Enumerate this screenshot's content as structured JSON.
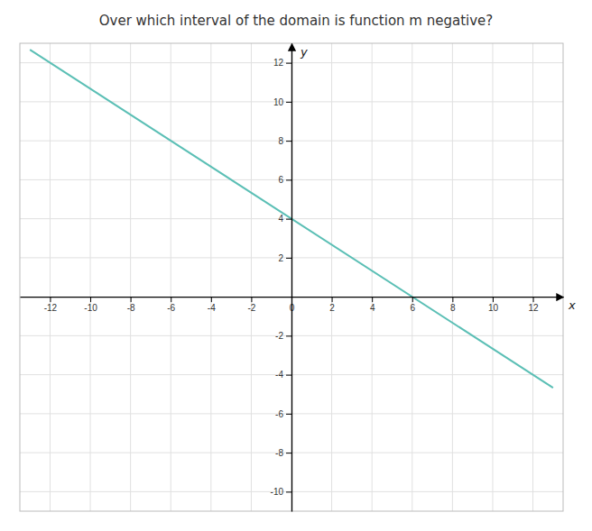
{
  "chart_data": {
    "type": "line",
    "title": "Over which interval of the domain is function m negative?",
    "xlabel": "x",
    "ylabel": "y",
    "x": [
      -13,
      13
    ],
    "values": [
      12.671,
      -4.671
    ],
    "color": "#5bbfb5",
    "xlim": [
      -13.5,
      13.5
    ],
    "ylim": [
      -11,
      13
    ],
    "xticks": [
      -12,
      -10,
      -8,
      -6,
      -4,
      -2,
      0,
      2,
      4,
      6,
      8,
      10,
      12
    ],
    "yticks": [
      -10,
      -8,
      -6,
      -4,
      -2,
      2,
      4,
      6,
      8,
      10,
      12
    ],
    "grid": true
  }
}
